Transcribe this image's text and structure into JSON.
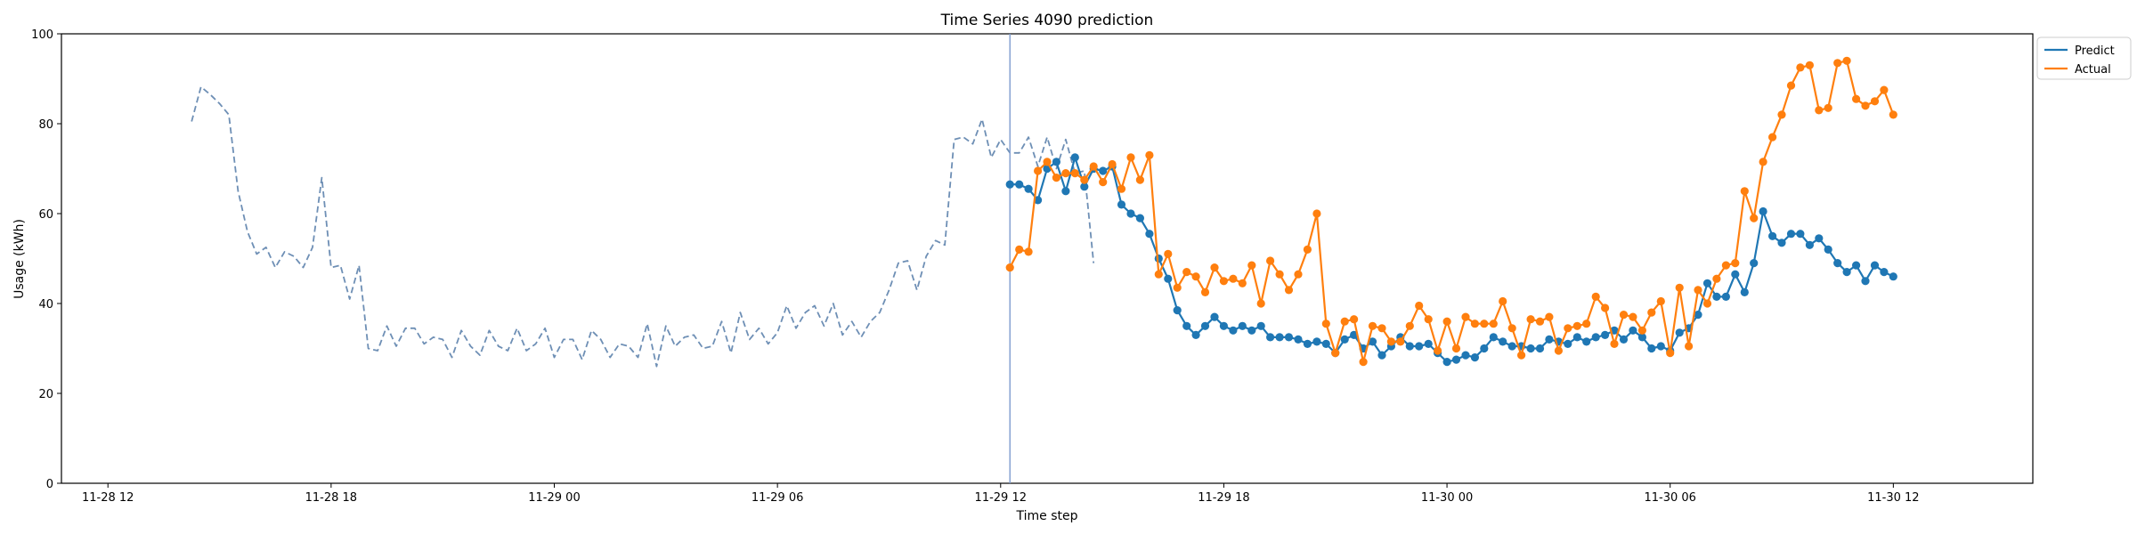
{
  "chart_data": {
    "type": "line",
    "title": "Time Series 4090 prediction",
    "xlabel": "Time step",
    "ylabel": "Usage (kWh)",
    "ylim": [
      0,
      100
    ],
    "yticks": [
      0,
      20,
      40,
      60,
      80,
      100
    ],
    "x_unit": "hours",
    "xticks": [
      {
        "x": 0,
        "label": "11-28 12"
      },
      {
        "x": 6,
        "label": "11-28 18"
      },
      {
        "x": 12,
        "label": "11-29 00"
      },
      {
        "x": 18,
        "label": "11-29 06"
      },
      {
        "x": 24,
        "label": "11-29 12"
      },
      {
        "x": 30,
        "label": "11-29 18"
      },
      {
        "x": 36,
        "label": "11-30 00"
      },
      {
        "x": 42,
        "label": "11-30 06"
      },
      {
        "x": 48,
        "label": "11-30 12"
      }
    ],
    "xlim": [
      -1.25,
      51.75
    ],
    "step": 0.25,
    "forecast_start": 24.25,
    "legend": {
      "position": "top-right",
      "entries": [
        {
          "name": "Predict",
          "color": "#1f77b4"
        },
        {
          "name": "Actual",
          "color": "#ff7f0e"
        }
      ]
    },
    "history": {
      "color": "#6e8fb5",
      "x_start": 2.25,
      "values": [
        80.5,
        88.2,
        86.5,
        84.5,
        82.0,
        65.0,
        56.0,
        51.0,
        52.5,
        48.0,
        51.5,
        50.5,
        48.0,
        52.5,
        68.0,
        48.0,
        48.5,
        41.0,
        48.5,
        30.0,
        29.5,
        35.0,
        30.5,
        34.5,
        34.5,
        31.0,
        32.5,
        32.0,
        28.0,
        34.0,
        30.5,
        28.5,
        34.0,
        30.5,
        29.5,
        34.5,
        29.5,
        31.0,
        34.5,
        28.0,
        32.0,
        32.0,
        27.5,
        34.0,
        32.0,
        28.0,
        31.0,
        30.5,
        28.0,
        35.5,
        26.0,
        35.0,
        30.5,
        32.5,
        33.0,
        30.0,
        30.5,
        36.0,
        29.0,
        38.0,
        32.0,
        34.5,
        31.0,
        33.5,
        39.5,
        34.5,
        38.0,
        39.5,
        35.0,
        40.0,
        33.0,
        36.0,
        32.5,
        36.0,
        38.0,
        43.0,
        49.0,
        49.5,
        43.0,
        50.5,
        54.0,
        53.0,
        76.5,
        77.0,
        75.5,
        81.0,
        72.5,
        76.5,
        73.5,
        73.5,
        77.0,
        70.5,
        77.0,
        70.0,
        76.5,
        69.0,
        69.5,
        49.0
      ]
    },
    "series": [
      {
        "name": "Predict",
        "color": "#1f77b4",
        "values": [
          66.5,
          66.5,
          65.5,
          63.0,
          70.0,
          71.5,
          65.0,
          72.5,
          66.0,
          70.0,
          69.5,
          70.5,
          62.0,
          60.0,
          59.0,
          55.5,
          50.0,
          45.5,
          38.5,
          35.0,
          33.0,
          35.0,
          37.0,
          35.0,
          34.0,
          35.0,
          34.0,
          35.0,
          32.5,
          32.5,
          32.5,
          32.0,
          31.0,
          31.5,
          31.0,
          29.0,
          32.0,
          33.0,
          30.0,
          31.5,
          28.5,
          30.5,
          32.5,
          30.5,
          30.5,
          31.0,
          29.0,
          27.0,
          27.5,
          28.5,
          28.0,
          30.0,
          32.5,
          31.5,
          30.5,
          30.5,
          30.0,
          30.0,
          32.0,
          31.5,
          31.0,
          32.5,
          31.5,
          32.5,
          33.0,
          34.0,
          32.0,
          34.0,
          32.5,
          30.0,
          30.5,
          29.5,
          33.5,
          34.5,
          37.5,
          44.5,
          41.5,
          41.5,
          46.5,
          42.5,
          49.0,
          60.5,
          55.0,
          53.5,
          55.5,
          55.5,
          53.0,
          54.5,
          52.0,
          49.0,
          47.0,
          48.5,
          45.0,
          48.5,
          47.0,
          46.0
        ]
      },
      {
        "name": "Actual",
        "color": "#ff7f0e",
        "values": [
          48.0,
          52.0,
          51.5,
          69.5,
          71.5,
          68.0,
          69.0,
          69.0,
          67.5,
          70.5,
          67.0,
          71.0,
          65.5,
          72.5,
          67.5,
          73.0,
          46.5,
          51.0,
          43.5,
          47.0,
          46.0,
          42.5,
          48.0,
          45.0,
          45.5,
          44.5,
          48.5,
          40.0,
          49.5,
          46.5,
          43.0,
          46.5,
          52.0,
          60.0,
          35.5,
          29.0,
          36.0,
          36.5,
          27.0,
          35.0,
          34.5,
          31.5,
          31.5,
          35.0,
          39.5,
          36.5,
          29.5,
          36.0,
          30.0,
          37.0,
          35.5,
          35.5,
          35.5,
          40.5,
          34.5,
          28.5,
          36.5,
          36.0,
          37.0,
          29.5,
          34.5,
          35.0,
          35.5,
          41.5,
          39.0,
          31.0,
          37.5,
          37.0,
          34.0,
          38.0,
          40.5,
          29.0,
          43.5,
          30.5,
          43.0,
          40.0,
          45.5,
          48.5,
          49.0,
          65.0,
          59.0,
          71.5,
          77.0,
          82.0,
          88.5,
          92.5,
          93.0,
          83.0,
          83.5,
          93.5,
          94.0,
          85.5,
          84.0,
          85.0,
          87.5,
          82.0
        ]
      }
    ]
  }
}
